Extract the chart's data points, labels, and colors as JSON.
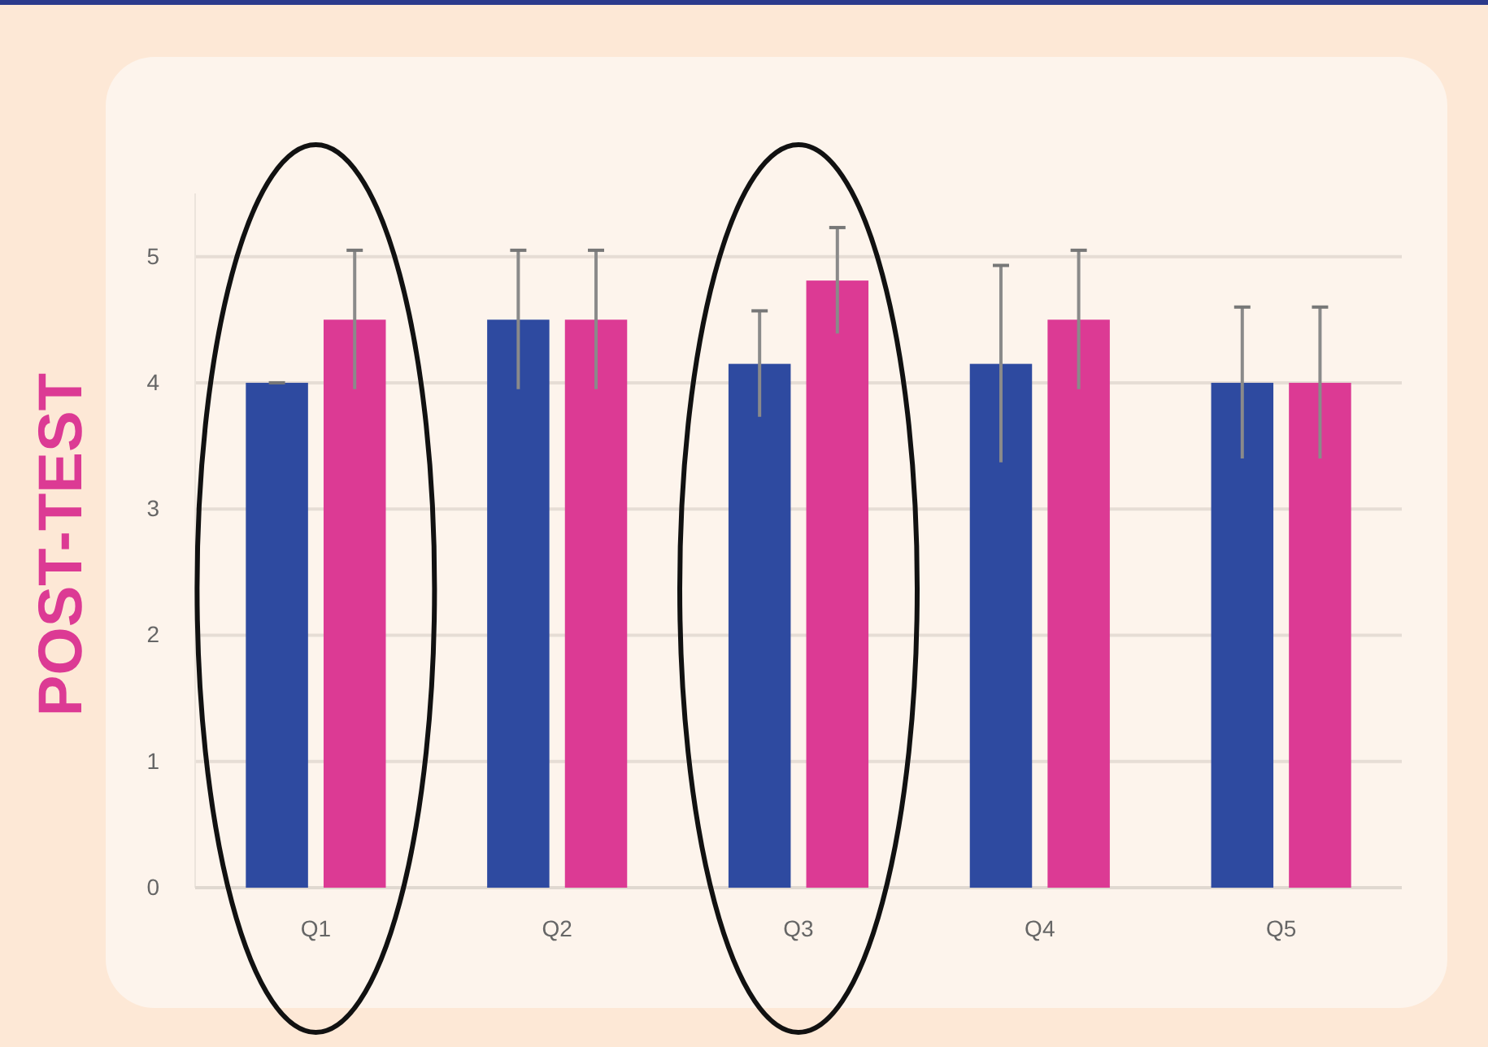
{
  "chart_data": {
    "type": "bar",
    "ylabel": "POST-TEST",
    "categories": [
      "Q1",
      "Q2",
      "Q3",
      "Q4",
      "Q5"
    ],
    "series": [
      {
        "color": "#2e4aa0",
        "values": [
          4.0,
          4.5,
          4.15,
          4.15,
          4.0
        ],
        "errors": [
          0,
          0.55,
          0.42,
          0.78,
          0.6
        ]
      },
      {
        "color": "#dc3a94",
        "values": [
          4.5,
          4.5,
          4.81,
          4.5,
          4.0
        ],
        "errors": [
          0.55,
          0.55,
          0.42,
          0.55,
          0.6
        ]
      }
    ],
    "ylim": [
      0,
      5.5
    ],
    "yticks": [
      0,
      1,
      2,
      3,
      4,
      5
    ],
    "grid": "y"
  }
}
